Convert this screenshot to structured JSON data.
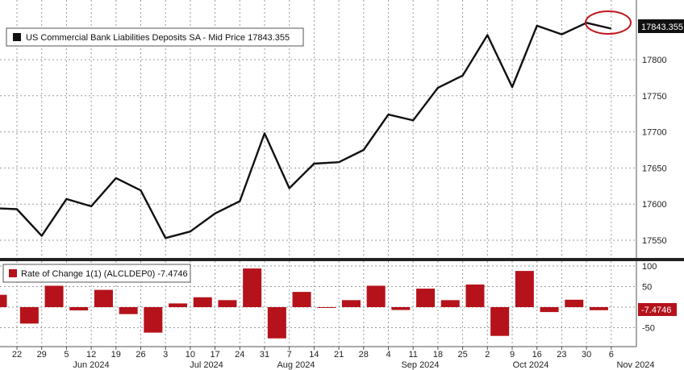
{
  "chart_data": [
    {
      "type": "line",
      "legend": "US Commercial Bank Liabilities Deposits SA - Mid Price 17843.355",
      "last_value_label": "17843.355",
      "ylim": [
        17520,
        17870
      ],
      "yticks": [
        17550,
        17600,
        17650,
        17700,
        17750,
        17800
      ],
      "color": "#111111",
      "x_labels": [
        "22",
        "29",
        "5",
        "12",
        "19",
        "26",
        "3",
        "10",
        "17",
        "24",
        "31",
        "7",
        "14",
        "21",
        "28",
        "4",
        "11",
        "18",
        "25",
        "2",
        "9",
        "16",
        "23",
        "30",
        "6"
      ],
      "values": [
        17594,
        17593,
        17556,
        17607,
        17597,
        17636,
        17619,
        17553,
        17562,
        17587,
        17604,
        17698,
        17622,
        17656,
        17658,
        17675,
        17724,
        17716,
        17761,
        17778,
        17834,
        17762,
        17847,
        17835,
        17851,
        17843
      ]
    },
    {
      "type": "bar",
      "legend": "Rate of Change 1(1) (ALCLDEP0) -7.4746",
      "last_value_label": "-7.4746",
      "ylim": [
        -75,
        110
      ],
      "yticks": [
        100,
        50,
        0,
        -50
      ],
      "ytick_labels": [
        "100",
        "50",
        "0",
        "-50"
      ],
      "color": "#b5121b",
      "values": [
        30,
        -40,
        52,
        -8,
        42,
        -17,
        -62,
        9,
        24,
        17,
        94,
        -76,
        37,
        -1,
        17,
        52,
        -7,
        45,
        17,
        55,
        -70,
        88,
        -12,
        18,
        -7.4746
      ]
    }
  ],
  "months": [
    "Jun 2024",
    "Jul 2024",
    "Aug 2024",
    "Sep 2024",
    "Oct 2024",
    "Nov 2024"
  ]
}
